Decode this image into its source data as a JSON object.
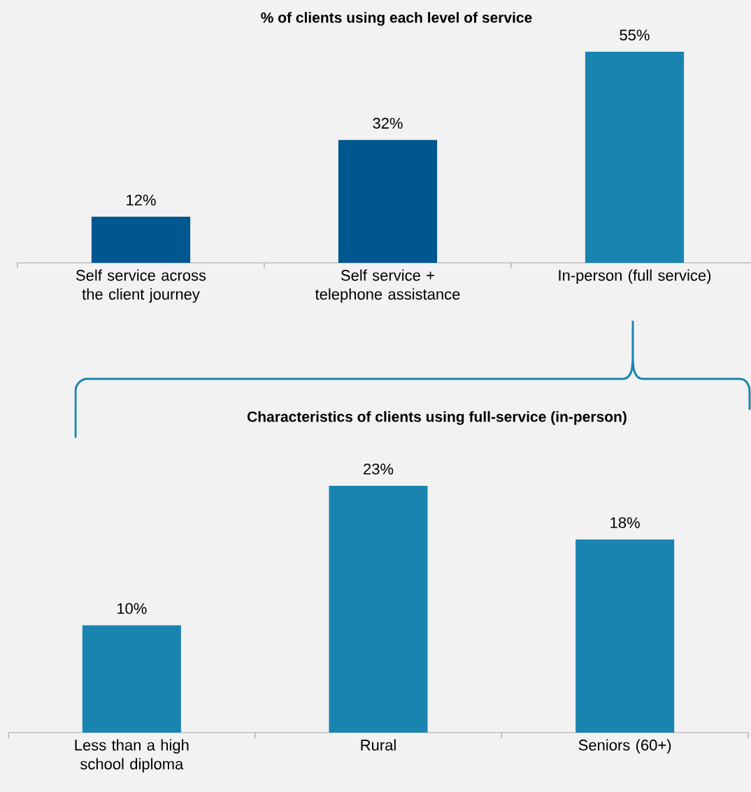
{
  "chart_data": [
    {
      "type": "bar",
      "title": "% of clients using each level of service",
      "categories": [
        "Self service across the client journey",
        "Self service + telephone assistance",
        "In-person (full service)"
      ],
      "values": [
        12,
        32,
        55
      ],
      "colors": [
        "#00568f",
        "#00568f",
        "#1a84b0"
      ],
      "value_labels": [
        "12%",
        "32%",
        "55%"
      ]
    },
    {
      "type": "bar",
      "title": "Characteristics of clients using full-service (in-person)",
      "categories": [
        "Less than a high school diploma",
        "Rural",
        "Seniors (60+)"
      ],
      "values": [
        10,
        23,
        18
      ],
      "colors": [
        "#1a84b0",
        "#1a84b0",
        "#1a84b0"
      ],
      "value_labels": [
        "10%",
        "23%",
        "18%"
      ]
    }
  ]
}
